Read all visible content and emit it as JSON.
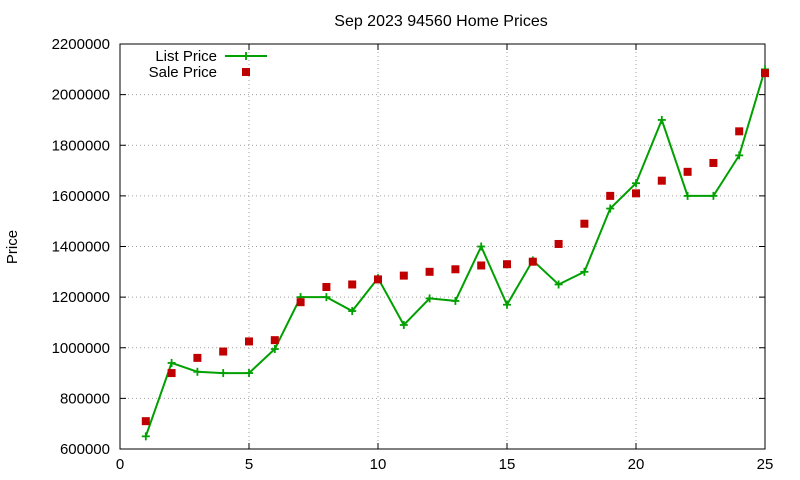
{
  "chart_data": {
    "type": "line",
    "title": "Sep 2023 94560 Home Prices",
    "xlabel": "",
    "ylabel": "Price",
    "xlim": [
      0,
      25
    ],
    "ylim": [
      600000,
      2200000
    ],
    "xticks": [
      0,
      5,
      10,
      15,
      20,
      25
    ],
    "yticks": [
      600000,
      800000,
      1000000,
      1200000,
      1400000,
      1600000,
      1800000,
      2000000,
      2200000
    ],
    "grid": true,
    "legend_position": "top-left",
    "series": [
      {
        "name": "List Price",
        "style": "line-with-plus-markers",
        "color": "#00a000",
        "x": [
          1,
          2,
          3,
          4,
          5,
          6,
          7,
          8,
          9,
          10,
          11,
          12,
          13,
          14,
          15,
          16,
          17,
          18,
          19,
          20,
          21,
          22,
          23,
          24,
          25
        ],
        "values": [
          650000,
          940000,
          905000,
          900000,
          900000,
          995000,
          1200000,
          1200000,
          1145000,
          1275000,
          1090000,
          1195000,
          1185000,
          1400000,
          1170000,
          1345000,
          1250000,
          1300000,
          1550000,
          1650000,
          1900000,
          1600000,
          1600000,
          1760000,
          2100000
        ]
      },
      {
        "name": "Sale Price",
        "style": "square-markers",
        "color": "#c00000",
        "x": [
          1,
          2,
          3,
          4,
          5,
          6,
          7,
          8,
          9,
          10,
          11,
          12,
          13,
          14,
          15,
          16,
          17,
          18,
          19,
          20,
          21,
          22,
          23,
          24,
          25
        ],
        "values": [
          710000,
          900000,
          960000,
          985000,
          1025000,
          1030000,
          1180000,
          1240000,
          1250000,
          1270000,
          1285000,
          1300000,
          1310000,
          1325000,
          1330000,
          1340000,
          1410000,
          1490000,
          1600000,
          1610000,
          1660000,
          1695000,
          1730000,
          1855000,
          2085000
        ]
      }
    ]
  }
}
